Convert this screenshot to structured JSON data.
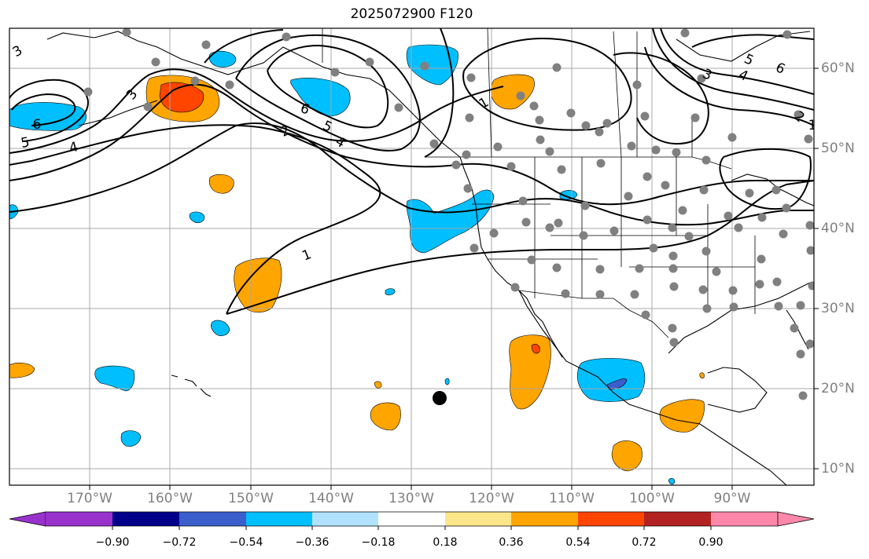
{
  "title": "2025072900 F120",
  "longitude_labels": [
    "170°W",
    "160°W",
    "150°W",
    "140°W",
    "130°W",
    "120°W",
    "110°W",
    "100°W",
    "90°W"
  ],
  "latitude_labels": [
    "60°N",
    "50°N",
    "40°N",
    "30°N",
    "20°N",
    "10°N"
  ],
  "contour_labels": [
    "1",
    "1",
    "2",
    "3",
    "3",
    "4",
    "4",
    "5",
    "5",
    "6",
    "6",
    "5",
    "6",
    "4",
    "3",
    "2",
    "1"
  ],
  "colorbar": {
    "tick_labels": [
      "−0.90",
      "−0.72",
      "−0.54",
      "−0.36",
      "−0.18",
      "0.18",
      "0.36",
      "0.54",
      "0.72",
      "0.90"
    ],
    "colors": [
      "#9932cc",
      "#00008b",
      "#3a5fcd",
      "#00bfff",
      "#b0e2ff",
      "#ffffff",
      "#fbe789",
      "#ffa500",
      "#ff4500",
      "#b22222",
      "#ff88aa"
    ]
  }
}
